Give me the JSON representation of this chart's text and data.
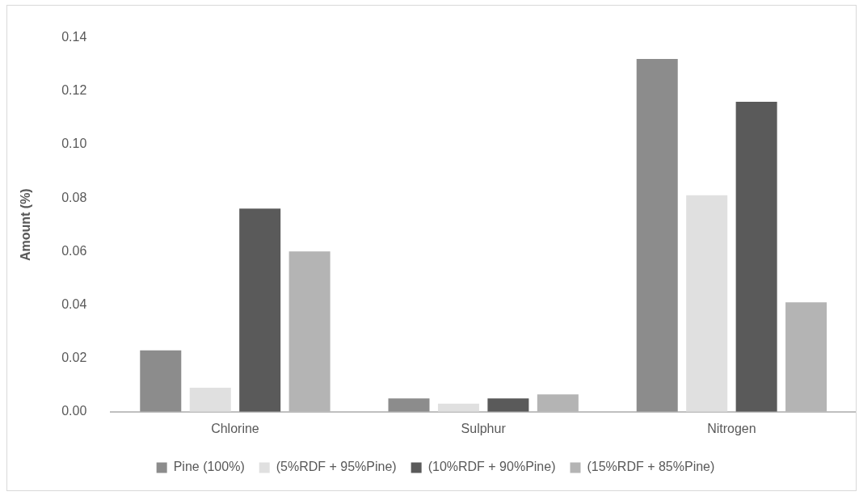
{
  "chart_data": {
    "type": "bar",
    "ylabel": "Amount (%)",
    "categories": [
      "Chlorine",
      "Sulphur",
      "Nitrogen"
    ],
    "series": [
      {
        "name": "Pine (100%)",
        "color": "#8c8c8c",
        "values": [
          0.023,
          0.005,
          0.132
        ]
      },
      {
        "name": "(5%RDF + 95%Pine)",
        "color": "#e0e0e0",
        "values": [
          0.009,
          0.003,
          0.081
        ]
      },
      {
        "name": "(10%RDF + 90%Pine)",
        "color": "#5a5a5a",
        "values": [
          0.076,
          0.005,
          0.116
        ]
      },
      {
        "name": "(15%RDF + 85%Pine)",
        "color": "#b4b4b4",
        "values": [
          0.06,
          0.0065,
          0.041
        ]
      }
    ],
    "ylim": [
      0,
      0.14
    ],
    "yticks": [
      {
        "value": 0,
        "label": "0.00"
      },
      {
        "value": 0.02,
        "label": "0.02"
      },
      {
        "value": 0.04,
        "label": "0.04"
      },
      {
        "value": 0.06,
        "label": "0.06"
      },
      {
        "value": 0.08,
        "label": "0.08"
      },
      {
        "value": 0.1,
        "label": "0.10"
      },
      {
        "value": 0.12,
        "label": "0.12"
      },
      {
        "value": 0.14,
        "label": "0.14"
      }
    ],
    "grid": false,
    "legend": "bottom"
  }
}
